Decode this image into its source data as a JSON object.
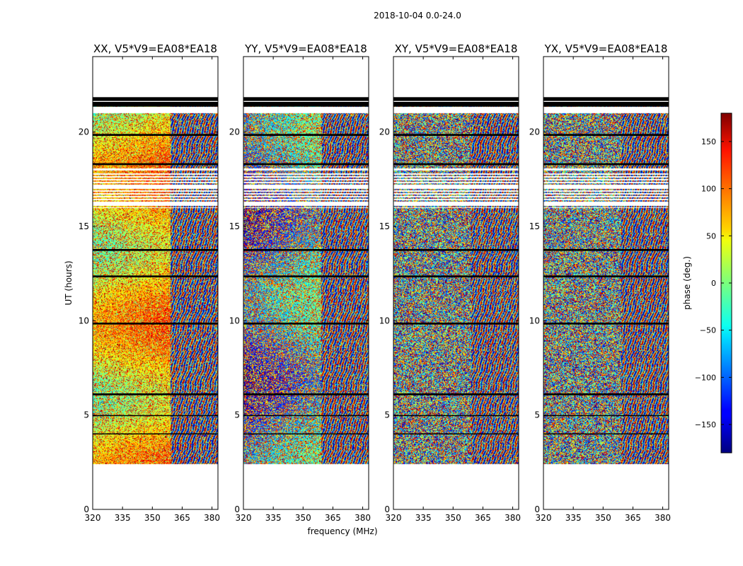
{
  "figure": {
    "suptitle": "2018-10-04 0.0-24.0",
    "xlabel": "frequency (MHz)",
    "ylabel": "UT (hours)",
    "colorbar_label": "phase (deg.)"
  },
  "chart_data": {
    "type": "heatmap",
    "panels": [
      {
        "title": "XX, V5*V9=EA08*EA18",
        "baseline": "V5*V9=EA08*EA18",
        "polarization": "XX"
      },
      {
        "title": "YY, V5*V9=EA08*EA18",
        "baseline": "V5*V9=EA08*EA18",
        "polarization": "YY"
      },
      {
        "title": "XY, V5*V9=EA08*EA18",
        "baseline": "V5*V9=EA08*EA18",
        "polarization": "XY"
      },
      {
        "title": "YX, V5*V9=EA08*EA18",
        "baseline": "V5*V9=EA08*EA18",
        "polarization": "YX"
      }
    ],
    "xlim": [
      320,
      383
    ],
    "xticks": [
      320,
      335,
      350,
      365,
      380
    ],
    "ylim": [
      0,
      24
    ],
    "yticks": [
      0,
      5,
      10,
      15,
      20
    ],
    "colorbar": {
      "colormap": "jet",
      "range": [
        -180,
        180
      ],
      "ticks": [
        -150,
        -100,
        -50,
        0,
        50,
        100,
        150
      ],
      "tick_labels": [
        "−150",
        "−100",
        "−50",
        "0",
        "50",
        "100",
        "150"
      ]
    },
    "data_coverage_hours": [
      2.4,
      21.4
    ],
    "flagged_black_rows_hours": [
      [
        21.35,
        21.6
      ],
      [
        21.65,
        21.85
      ],
      [
        19.8,
        19.9
      ],
      [
        18.25,
        18.35
      ],
      [
        13.7,
        13.8
      ],
      [
        12.3,
        12.4
      ],
      [
        9.8,
        9.9
      ],
      [
        6.05,
        6.15
      ],
      [
        4.95,
        5.0
      ],
      [
        3.98,
        4.03
      ]
    ]
  }
}
